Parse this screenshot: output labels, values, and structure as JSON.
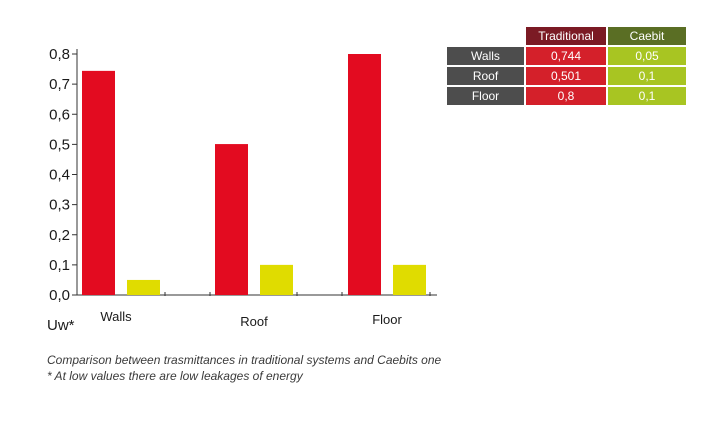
{
  "chart_data": {
    "type": "bar",
    "categories": [
      "Walls",
      "Roof",
      "Floor"
    ],
    "series": [
      {
        "name": "Traditional",
        "values": [
          0.744,
          0.501,
          0.8
        ],
        "color": "#e30b20"
      },
      {
        "name": "Caebit",
        "values": [
          0.05,
          0.1,
          0.1
        ],
        "color": "#e0dc00"
      }
    ],
    "ylabel": "Uw*",
    "ylim": [
      0,
      0.8
    ],
    "yticks": [
      "0,0",
      "0,1",
      "0,2",
      "0,3",
      "0,4",
      "0,5",
      "0,6",
      "0,7",
      "0,8"
    ],
    "grid": false
  },
  "table": {
    "headers": [
      "Traditional",
      "Caebit"
    ],
    "rows": [
      {
        "label": "Walls",
        "traditional": "0,744",
        "caebit": "0,05"
      },
      {
        "label": "Roof",
        "traditional": "0,501",
        "caebit": "0,1"
      },
      {
        "label": "Floor",
        "traditional": "0,8",
        "caebit": "0,1"
      }
    ]
  },
  "captions": {
    "line1": "Comparison between trasmittances in traditional systems and Caebits one",
    "line2": "* At low values there are low leakages of energy"
  }
}
